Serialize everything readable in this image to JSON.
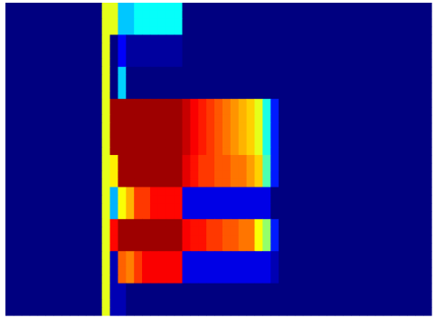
{
  "chart_data": {
    "type": "heatmap",
    "title": "",
    "xlabel": "",
    "ylabel": "",
    "colormap": "jet",
    "value_range": [
      0,
      1
    ],
    "n_columns": 53,
    "n_rows": 39,
    "background_value": 0.0,
    "row_segments": [
      {
        "rows": [
          0,
          3
        ],
        "cells": [
          [
            0,
            11,
            0.0
          ],
          [
            12,
            13,
            0.6
          ],
          [
            14,
            15,
            0.32
          ],
          [
            16,
            21,
            0.38
          ],
          [
            22,
            52,
            0.0
          ]
        ]
      },
      {
        "rows": [
          4,
          7
        ],
        "cells": [
          [
            0,
            11,
            0.0
          ],
          [
            12,
            12,
            0.6
          ],
          [
            13,
            13,
            0.0
          ],
          [
            14,
            14,
            0.12
          ],
          [
            15,
            21,
            0.03
          ],
          [
            22,
            52,
            0.0
          ]
        ]
      },
      {
        "rows": [
          8,
          11
        ],
        "cells": [
          [
            0,
            11,
            0.0
          ],
          [
            12,
            12,
            0.6
          ],
          [
            13,
            13,
            0.0
          ],
          [
            14,
            14,
            0.33
          ],
          [
            15,
            52,
            0.0
          ]
        ]
      },
      {
        "rows": [
          12,
          18
        ],
        "cells": [
          [
            0,
            11,
            0.0
          ],
          [
            12,
            12,
            0.6
          ],
          [
            13,
            21,
            0.97
          ],
          [
            22,
            22,
            0.93
          ],
          [
            23,
            23,
            0.88
          ],
          [
            24,
            24,
            0.85
          ],
          [
            25,
            25,
            0.82
          ],
          [
            26,
            26,
            0.79
          ],
          [
            27,
            27,
            0.76
          ],
          [
            28,
            28,
            0.73
          ],
          [
            29,
            29,
            0.7
          ],
          [
            30,
            30,
            0.67
          ],
          [
            31,
            31,
            0.6
          ],
          [
            32,
            32,
            0.4
          ],
          [
            33,
            33,
            0.15
          ],
          [
            34,
            52,
            0.0
          ]
        ]
      },
      {
        "rows": [
          19,
          22
        ],
        "cells": [
          [
            0,
            11,
            0.0
          ],
          [
            12,
            12,
            0.6
          ],
          [
            13,
            13,
            0.64
          ],
          [
            14,
            21,
            0.97
          ],
          [
            22,
            22,
            0.9
          ],
          [
            23,
            23,
            0.86
          ],
          [
            24,
            25,
            0.82
          ],
          [
            26,
            27,
            0.79
          ],
          [
            28,
            29,
            0.76
          ],
          [
            30,
            30,
            0.72
          ],
          [
            31,
            31,
            0.67
          ],
          [
            32,
            32,
            0.45
          ],
          [
            33,
            33,
            0.15
          ],
          [
            34,
            52,
            0.0
          ]
        ]
      },
      {
        "rows": [
          23,
          26
        ],
        "cells": [
          [
            0,
            11,
            0.0
          ],
          [
            12,
            12,
            0.6
          ],
          [
            13,
            13,
            0.3
          ],
          [
            14,
            14,
            0.62
          ],
          [
            15,
            15,
            0.7
          ],
          [
            16,
            17,
            0.82
          ],
          [
            18,
            21,
            0.87
          ],
          [
            22,
            32,
            0.1
          ],
          [
            33,
            33,
            0.0
          ],
          [
            34,
            52,
            0.0
          ]
        ]
      },
      {
        "rows": [
          27,
          30
        ],
        "cells": [
          [
            0,
            11,
            0.0
          ],
          [
            12,
            12,
            0.6
          ],
          [
            13,
            13,
            0.87
          ],
          [
            14,
            21,
            0.97
          ],
          [
            22,
            22,
            0.88
          ],
          [
            23,
            24,
            0.86
          ],
          [
            25,
            26,
            0.82
          ],
          [
            27,
            28,
            0.79
          ],
          [
            29,
            30,
            0.76
          ],
          [
            31,
            31,
            0.62
          ],
          [
            32,
            32,
            0.52
          ],
          [
            33,
            33,
            0.15
          ],
          [
            34,
            52,
            0.0
          ]
        ]
      },
      {
        "rows": [
          31,
          34
        ],
        "cells": [
          [
            0,
            11,
            0.0
          ],
          [
            12,
            12,
            0.6
          ],
          [
            13,
            13,
            0.05
          ],
          [
            14,
            14,
            0.78
          ],
          [
            15,
            15,
            0.75
          ],
          [
            16,
            16,
            0.82
          ],
          [
            17,
            21,
            0.88
          ],
          [
            22,
            32,
            0.1
          ],
          [
            33,
            33,
            0.05
          ],
          [
            34,
            52,
            0.0
          ]
        ]
      },
      {
        "rows": [
          35,
          38
        ],
        "cells": [
          [
            0,
            11,
            0.0
          ],
          [
            12,
            12,
            0.6
          ],
          [
            13,
            14,
            0.05
          ],
          [
            15,
            52,
            0.0
          ]
        ]
      }
    ]
  }
}
